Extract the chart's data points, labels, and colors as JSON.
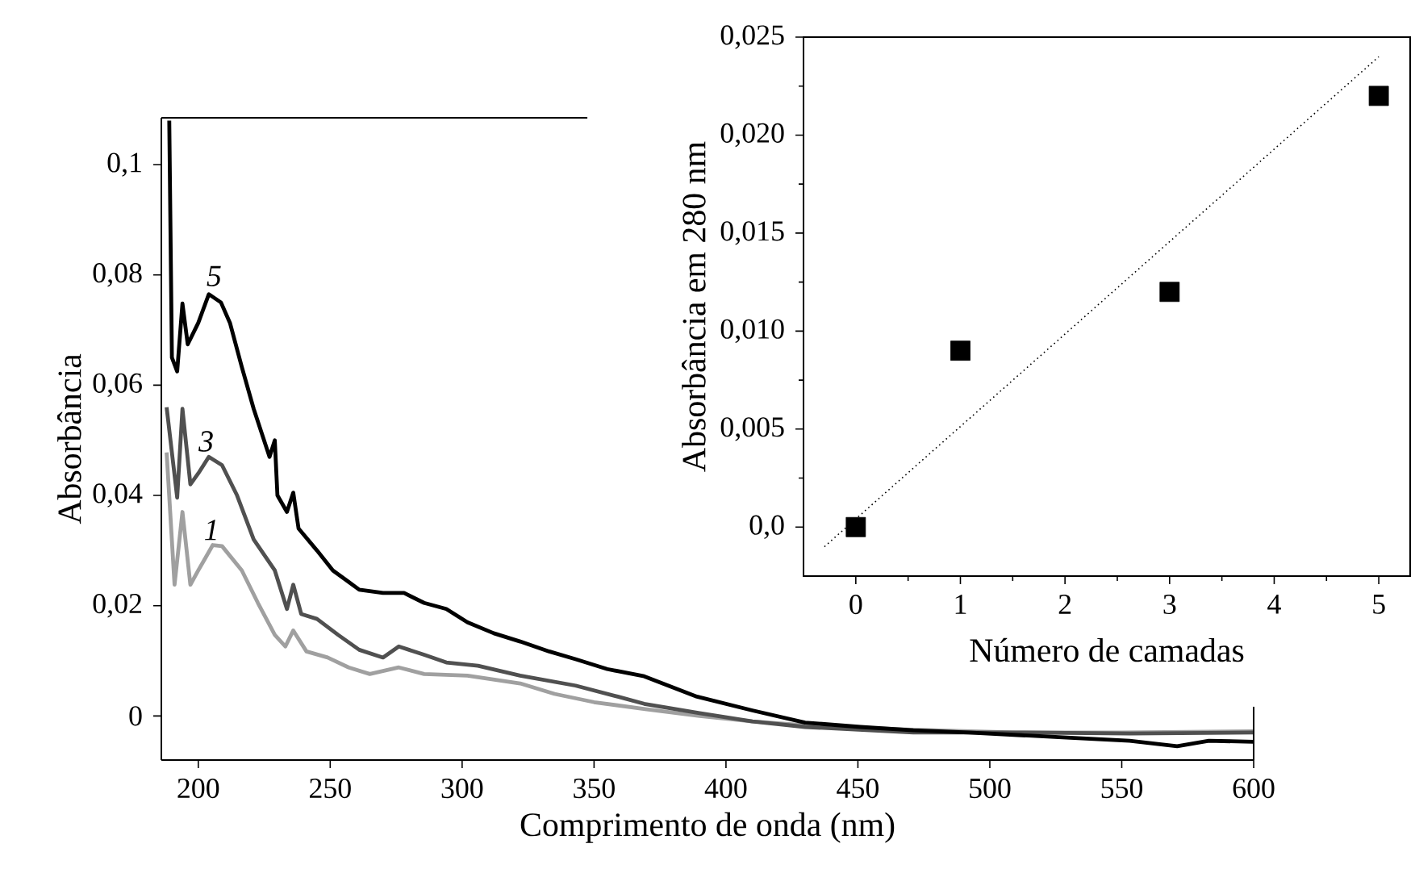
{
  "chart_data": [
    {
      "type": "line",
      "xlabel": "Comprimento de onda (nm)",
      "ylabel": "Absorbância",
      "xlim": [
        186,
        600
      ],
      "ylim": [
        -0.008,
        0.1085
      ],
      "xticks": [
        200,
        250,
        300,
        350,
        400,
        450,
        500,
        550,
        600
      ],
      "yticks": [
        0,
        {
          "value": 0.02,
          "label": "0,02"
        },
        {
          "value": 0.04,
          "label": "0,04"
        },
        {
          "value": 0.06,
          "label": "0,06"
        },
        {
          "value": 0.08,
          "label": "0,08"
        },
        {
          "value": 0.1,
          "label": "0,1"
        }
      ],
      "series": [
        {
          "color": "#a0a0a0",
          "x": [
            188,
            191,
            194,
            197,
            200,
            205.5,
            209,
            216.5,
            222.6,
            229,
            233,
            236,
            241,
            249,
            257,
            265,
            276,
            285.6,
            302,
            322,
            335,
            350,
            370,
            390,
            410,
            430,
            470,
            510,
            550,
            600
          ],
          "values": [
            0.0478,
            0.0238,
            0.037,
            0.0238,
            0.0264,
            0.031,
            0.0308,
            0.0264,
            0.0205,
            0.0147,
            0.0126,
            0.0155,
            0.0117,
            0.0106,
            0.0088,
            0.0076,
            0.0088,
            0.0076,
            0.0073,
            0.0059,
            0.004,
            0.0025,
            0.0012,
            0.0,
            -0.001,
            -0.0017,
            -0.0025,
            -0.003,
            -0.003,
            -0.0028
          ]
        },
        {
          "color": "#505050",
          "x": [
            188,
            192,
            194,
            197,
            200,
            204,
            209,
            214.7,
            221,
            229,
            233.6,
            236,
            239,
            245,
            253,
            261,
            270,
            276,
            285.6,
            294,
            306,
            322,
            343,
            359,
            369,
            390,
            410,
            430,
            471,
            512,
            553,
            600
          ],
          "values": [
            0.056,
            0.0396,
            0.0557,
            0.042,
            0.044,
            0.047,
            0.0455,
            0.04,
            0.032,
            0.0264,
            0.0194,
            0.0238,
            0.0185,
            0.0176,
            0.0147,
            0.012,
            0.0106,
            0.0126,
            0.0111,
            0.0097,
            0.0091,
            0.0073,
            0.0055,
            0.0035,
            0.0022,
            0.0005,
            -0.001,
            -0.002,
            -0.003,
            -0.003,
            -0.0032,
            -0.003
          ]
        },
        {
          "color": "#000000",
          "x": [
            189,
            190,
            192,
            194,
            196,
            200,
            204,
            208.6,
            212,
            216.5,
            221,
            227,
            229,
            230,
            233.6,
            236,
            238,
            245,
            251,
            257,
            261,
            270,
            278,
            285.6,
            294,
            302,
            312,
            322,
            333,
            343,
            355,
            369,
            389,
            410,
            430,
            451,
            471,
            492,
            512,
            532,
            553,
            571,
            583,
            600
          ],
          "values": [
            0.108,
            0.065,
            0.0625,
            0.0748,
            0.0674,
            0.0713,
            0.0765,
            0.075,
            0.0713,
            0.0633,
            0.0557,
            0.047,
            0.05,
            0.04,
            0.037,
            0.0405,
            0.034,
            0.03,
            0.0264,
            0.0243,
            0.0229,
            0.0223,
            0.0223,
            0.0205,
            0.0194,
            0.017,
            0.015,
            0.0135,
            0.0117,
            0.0103,
            0.0085,
            0.0072,
            0.0035,
            0.001,
            -0.0012,
            -0.002,
            -0.0026,
            -0.003,
            -0.0035,
            -0.004,
            -0.0045,
            -0.0055,
            -0.0045,
            -0.0047
          ]
        }
      ],
      "annotations": [
        {
          "text": "1",
          "x": 205,
          "y": 0.031
        },
        {
          "text": "3",
          "x": 203,
          "y": 0.047
        },
        {
          "text": "5",
          "x": 206,
          "y": 0.077
        }
      ]
    },
    {
      "type": "scatter",
      "xlabel": "Número de camadas",
      "ylabel": "Absorbância em 280 nm",
      "xlim": [
        -0.5,
        5.3
      ],
      "ylim": [
        -0.0025,
        0.025
      ],
      "xticks": [
        0,
        1,
        2,
        3,
        4,
        5
      ],
      "yticks": [
        {
          "value": 0,
          "label": "0,0"
        },
        {
          "value": 0.005,
          "label": "0,005"
        },
        {
          "value": 0.01,
          "label": "0,010"
        },
        {
          "value": 0.015,
          "label": "0,015"
        },
        {
          "value": 0.02,
          "label": "0,020"
        },
        {
          "value": 0.025,
          "label": "0,025"
        }
      ],
      "marker": "square",
      "series": [
        {
          "color": "#000000",
          "x": [
            0,
            1,
            3,
            5
          ],
          "values": [
            0,
            0.009,
            0.012,
            0.022
          ]
        },
        {
          "type": "line",
          "line_style": "dotted",
          "marker": "none",
          "color": "#000000",
          "x": [
            -0.3,
            5
          ],
          "values": [
            -0.001,
            0.024
          ]
        }
      ]
    }
  ]
}
